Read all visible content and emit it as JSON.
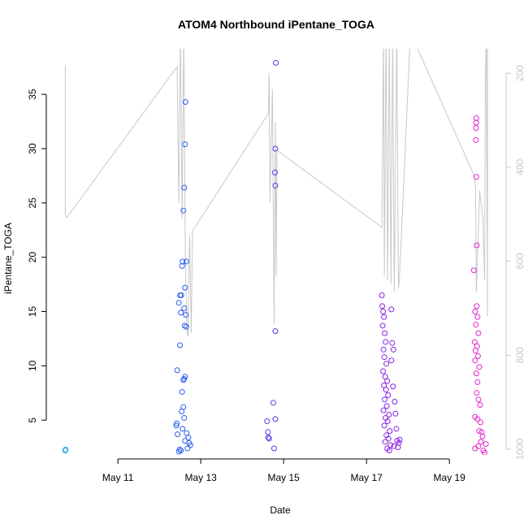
{
  "chart_data": {
    "type": "scatter",
    "title": "ATOM4 Northbound iPentane_TOGA",
    "xlabel": "Date",
    "ylabel": "iPentane_TOGA",
    "xlim": [
      9.37,
      20.27
    ],
    "xticks": [
      {
        "value": 11,
        "label": "May 11"
      },
      {
        "value": 13,
        "label": "May 13"
      },
      {
        "value": 15,
        "label": "May 15"
      },
      {
        "value": 17,
        "label": "May 17"
      },
      {
        "value": 19,
        "label": "May 19"
      }
    ],
    "ylim": [
      1.8,
      39.2
    ],
    "yticks": [
      5,
      10,
      15,
      20,
      25,
      30,
      35
    ],
    "y2lim": [
      1012,
      148
    ],
    "y2ticks": [
      200,
      400,
      600,
      800,
      1000
    ],
    "y2color": "#c8c8c8",
    "series": [
      {
        "color": "#1fa6dc",
        "x": [
          9.73,
          9.74
        ],
        "values": [
          2.2,
          2.3
        ]
      },
      {
        "color": "#2a5ef0",
        "x": [
          12.43,
          12.5,
          12.41,
          12.42,
          12.44,
          12.47,
          12.49,
          12.5,
          12.47,
          12.52,
          12.53,
          12.55,
          12.56,
          12.58,
          12.6,
          12.62,
          12.63,
          12.65,
          12.62,
          12.6,
          12.64,
          12.61,
          12.65,
          12.58,
          12.62,
          12.6,
          12.55,
          12.58,
          12.54,
          12.6,
          12.56,
          12.66,
          12.7,
          12.62,
          12.72,
          12.75,
          12.68,
          12.52
        ],
        "values": [
          9.6,
          11.9,
          4.5,
          4.7,
          3.7,
          2.1,
          2.3,
          16.5,
          15.8,
          14.9,
          16.5,
          19.2,
          19.6,
          24.3,
          26.4,
          30.4,
          34.3,
          19.6,
          17.2,
          15.3,
          14.7,
          13.7,
          13.6,
          8.7,
          9.0,
          8.8,
          7.6,
          6.2,
          5.8,
          5.2,
          4.2,
          3.8,
          3.4,
          3.1,
          2.9,
          2.7,
          2.4,
          2.2
        ]
      },
      {
        "color": "#4a3af0",
        "x": [
          14.6,
          14.62,
          14.63,
          14.65,
          14.75,
          14.77,
          14.8,
          14.8,
          14.8,
          14.79,
          14.8,
          14.81
        ],
        "values": [
          4.9,
          3.9,
          3.4,
          3.3,
          6.6,
          2.4,
          5.1,
          13.2,
          26.6,
          27.8,
          30.0,
          37.9
        ]
      },
      {
        "color": "#8a22e6",
        "x": [
          17.37,
          17.38,
          17.4,
          17.42,
          17.39,
          17.44,
          17.46,
          17.41,
          17.43,
          17.48,
          17.4,
          17.45,
          17.5,
          17.42,
          17.47,
          17.52,
          17.44,
          17.49,
          17.41,
          17.54,
          17.46,
          17.51,
          17.43,
          17.56,
          17.48,
          17.53,
          17.45,
          17.58,
          17.5,
          17.55,
          17.6,
          17.62,
          17.65,
          17.6,
          17.64,
          17.68,
          17.7,
          17.72,
          17.74,
          17.76,
          17.8,
          17.78,
          17.66
        ],
        "values": [
          16.5,
          15.5,
          15.0,
          14.5,
          13.7,
          13.0,
          12.2,
          11.5,
          10.8,
          10.2,
          9.5,
          9.0,
          8.6,
          8.2,
          7.8,
          7.3,
          6.9,
          6.3,
          5.9,
          5.5,
          5.2,
          4.9,
          4.5,
          4.0,
          3.6,
          3.3,
          3.0,
          2.7,
          2.4,
          2.2,
          15.2,
          12.1,
          11.5,
          10.5,
          8.1,
          6.7,
          5.6,
          4.2,
          3.1,
          2.5,
          3.2,
          2.9,
          2.6
        ]
      },
      {
        "color": "#e424cf",
        "x": [
          19.65,
          19.65,
          19.64,
          19.64,
          19.65,
          19.66,
          19.59,
          19.66,
          19.62,
          19.68,
          19.64,
          19.7,
          19.61,
          19.67,
          19.63,
          19.69,
          19.62,
          19.72,
          19.65,
          19.68,
          19.66,
          19.7,
          19.74,
          19.62,
          19.68,
          19.75,
          19.72,
          19.8,
          19.76,
          19.7,
          19.62,
          19.82,
          19.85,
          19.88,
          19.78
        ],
        "values": [
          32.8,
          32.4,
          31.9,
          30.8,
          27.4,
          21.1,
          18.8,
          15.5,
          15.0,
          14.5,
          13.8,
          13.0,
          12.2,
          11.8,
          11.4,
          10.9,
          10.5,
          9.9,
          9.3,
          8.5,
          7.5,
          6.9,
          6.4,
          5.3,
          5.1,
          4.8,
          4.0,
          3.5,
          3.0,
          2.6,
          2.4,
          2.2,
          2.0,
          2.8,
          3.9
        ]
      },
      {
        "type": "line",
        "axis": "y2",
        "color": "#c8c8c8",
        "x": [
          9.73,
          9.73,
          9.77,
          12.43,
          12.47,
          12.51,
          12.55,
          12.59,
          12.63,
          12.67,
          12.69,
          12.73,
          12.77,
          12.8,
          14.63,
          14.65,
          14.67,
          14.73,
          14.77,
          14.8,
          14.82,
          14.84,
          17.37,
          17.41,
          17.43,
          17.47,
          17.51,
          17.55,
          17.59,
          17.63,
          17.67,
          17.73,
          17.77,
          17.79,
          18.06,
          19.59,
          19.63,
          19.65,
          19.73,
          19.81,
          19.85,
          19.87,
          19.89,
          19.92,
          19.92
        ],
        "values": [
          183,
          502,
          507,
          186,
          476,
          114,
          510,
          114,
          614,
          752,
          760,
          545,
          752,
          536,
          286,
          200,
          476,
          234,
          734,
          303,
          631,
          364,
          528,
          114,
          631,
          114,
          640,
          114,
          648,
          114,
          665,
          114,
          657,
          645,
          114,
          416,
          441,
          666,
          450,
          510,
          640,
          200,
          114,
          717,
          114
        ]
      }
    ]
  }
}
